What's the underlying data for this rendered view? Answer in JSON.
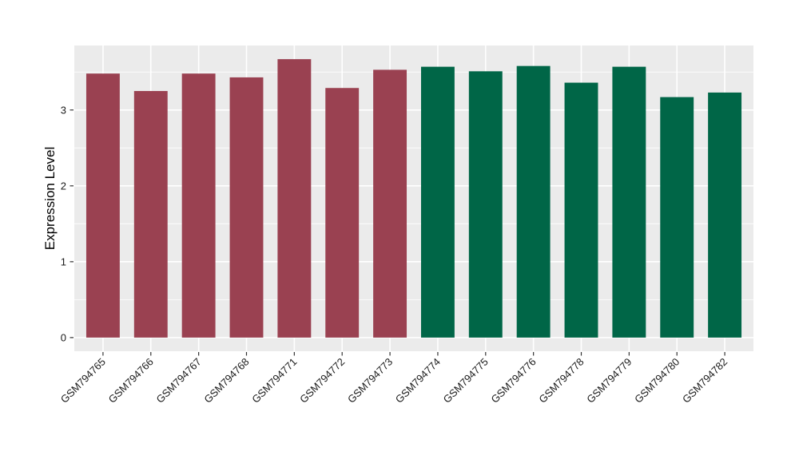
{
  "figure": {
    "background_color": "#FFFFFF",
    "panel_color": "#EBEBEB",
    "grid_color": "#FFFFFF",
    "tick_color": "#333333",
    "axis_text_color": "#1A1A1A",
    "axis_title_color": "#000000"
  },
  "chart_data": {
    "type": "bar",
    "title": "",
    "xlabel": "",
    "ylabel": "Expression Level",
    "categories": [
      "GSM794765",
      "GSM794766",
      "GSM794767",
      "GSM794768",
      "GSM794771",
      "GSM794772",
      "GSM794773",
      "GSM794774",
      "GSM794775",
      "GSM794776",
      "GSM794778",
      "GSM794779",
      "GSM794780",
      "GSM794782"
    ],
    "values": [
      3.48,
      3.25,
      3.48,
      3.43,
      3.67,
      3.29,
      3.53,
      3.57,
      3.51,
      3.58,
      3.36,
      3.57,
      3.17,
      3.23
    ],
    "bar_colors": [
      "#9A4151",
      "#9A4151",
      "#9A4151",
      "#9A4151",
      "#9A4151",
      "#9A4151",
      "#9A4151",
      "#006647",
      "#006647",
      "#006647",
      "#006647",
      "#006647",
      "#006647",
      "#006647"
    ],
    "group_colors": {
      "left_group": "#9A4151",
      "right_group": "#006647"
    },
    "yticks": [
      0,
      1,
      2,
      3
    ],
    "minor_yticks": [
      0.5,
      1.5,
      2.5,
      3.5
    ],
    "ylim": [
      -0.18,
      3.85
    ],
    "bar_width_fraction": 0.7,
    "x_label_rotation_deg": 45,
    "grid": true,
    "legend": "none"
  }
}
